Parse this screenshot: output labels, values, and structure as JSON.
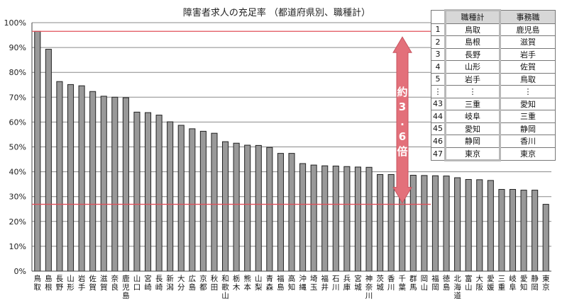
{
  "title": "障害者求人の充足率 （都道府県別、職種計）",
  "chart_data": {
    "type": "bar",
    "categories": [
      "鳥取",
      "島根",
      "長野",
      "山形",
      "岩手",
      "佐賀",
      "滋賀",
      "奈良",
      "鹿児島",
      "山口",
      "宮崎",
      "長崎",
      "新潟",
      "大分",
      "広島",
      "京都",
      "秋田",
      "和歌山",
      "栃木",
      "熊本",
      "山梨",
      "青森",
      "福島",
      "高知",
      "沖縄",
      "埼玉",
      "福井",
      "石川",
      "兵庫",
      "宮城",
      "神奈川",
      "茨城",
      "香川",
      "千葉",
      "群馬",
      "岡山",
      "福岡",
      "徳島",
      "北海道",
      "富山",
      "大阪",
      "愛媛",
      "三重",
      "岐阜",
      "愛知",
      "静岡",
      "東京"
    ],
    "values": [
      96.5,
      89.3,
      76.3,
      75.1,
      74.6,
      72.3,
      70.4,
      70.0,
      69.8,
      64.0,
      63.8,
      62.8,
      60.1,
      58.7,
      57.3,
      56.3,
      55.5,
      52.1,
      51.5,
      50.7,
      50.6,
      49.8,
      47.4,
      47.4,
      43.3,
      42.7,
      42.4,
      42.3,
      42.1,
      41.9,
      41.8,
      38.9,
      38.9,
      38.8,
      38.6,
      38.5,
      38.4,
      38.3,
      37.6,
      36.9,
      36.8,
      36.5,
      32.9,
      32.9,
      32.6,
      32.6,
      26.9
    ],
    "ylim": [
      0,
      100
    ],
    "yticks": [
      "0%",
      "10%",
      "20%",
      "30%",
      "40%",
      "50%",
      "60%",
      "70%",
      "80%",
      "90%",
      "100%"
    ],
    "reference_lines": [
      96.5,
      26.9
    ],
    "annotation": "約3.6倍",
    "grid": true,
    "bar_color": "#999999",
    "reference_line_color": "#e0505a",
    "arrow_color": "#e3707a"
  },
  "ranking_table": {
    "headers": [
      "",
      "職種計",
      "事務職"
    ],
    "rows": [
      [
        "1",
        "鳥取",
        "鹿児島"
      ],
      [
        "2",
        "島根",
        "滋賀"
      ],
      [
        "3",
        "長野",
        "岩手"
      ],
      [
        "4",
        "山形",
        "佐賀"
      ],
      [
        "5",
        "岩手",
        "鳥取"
      ],
      [
        "⋮",
        "⋮",
        "⋮"
      ],
      [
        "43",
        "三重",
        "愛知"
      ],
      [
        "44",
        "岐阜",
        "三重"
      ],
      [
        "45",
        "愛知",
        "静岡"
      ],
      [
        "46",
        "静岡",
        "香川"
      ],
      [
        "47",
        "東京",
        "東京"
      ]
    ]
  }
}
